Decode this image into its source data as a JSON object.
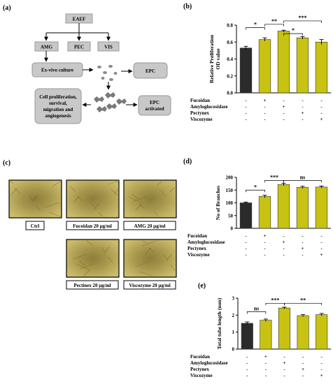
{
  "panels": {
    "a": {
      "letter": "(a)",
      "nodes": {
        "eaef": "EAEF",
        "amg": "AMG",
        "pec": "PEC",
        "vis": "VIS",
        "exvivo": "Ex-vivo culture",
        "epc": "EPC",
        "epc_act_1": "EPC",
        "epc_act_2": "activated",
        "outcome_1": "Cell proliferation,",
        "outcome_2": "survival,",
        "outcome_3": "migration and",
        "outcome_4": "angiogenesis"
      }
    },
    "b": {
      "letter": "(b)"
    },
    "c": {
      "letter": "(c)",
      "captions": [
        "Ctrl",
        "Fucoidan 20 µg/ml",
        "AMG 20 µg/ml",
        "Pectinex 20 µg/ml",
        "Viscozyme 20 µg/ml"
      ]
    },
    "d": {
      "letter": "(d)"
    },
    "e": {
      "letter": "(e)"
    }
  },
  "treatment_rows": [
    "Fucoidan",
    "Amyloglucosidase",
    "Pectynex",
    "Viscozyme"
  ],
  "treatment_matrix": [
    [
      "-",
      "+",
      "-",
      "-",
      "-"
    ],
    [
      "-",
      "-",
      "+",
      "-",
      "-"
    ],
    [
      "-",
      "-",
      "-",
      "+",
      "-"
    ],
    [
      "-",
      "-",
      "-",
      "-",
      "+"
    ]
  ],
  "colors": {
    "control_bar": "#2b2b2b",
    "treated_bar": "#c8c213",
    "micrograph": "#b4a457",
    "box_fill": "#c8c8c8"
  },
  "chart_data": [
    {
      "panel": "b",
      "type": "bar",
      "categories": [
        "Ctrl",
        "Fucoidan",
        "Amyloglucosidase",
        "Pectynex",
        "Viscozyme"
      ],
      "values": [
        0.53,
        0.63,
        0.73,
        0.65,
        0.6
      ],
      "errors": [
        0.02,
        0.02,
        0.01,
        0.015,
        0.03
      ],
      "ylabel_lines": [
        "Relative Proliferation",
        "OD value"
      ],
      "ylim": [
        0,
        0.8
      ],
      "yticks": [
        "0.0",
        "0.2",
        "0.4",
        "0.6",
        "0.8"
      ],
      "annotations": [
        {
          "from": 0,
          "to": 1,
          "text": "*",
          "level": 0.77
        },
        {
          "from": 1,
          "to": 2,
          "text": "**",
          "level": 0.81
        },
        {
          "from": 2,
          "to": 3,
          "text": "*",
          "level": 0.7
        },
        {
          "from": 2,
          "to": 4,
          "text": "***",
          "level": 0.85
        }
      ]
    },
    {
      "panel": "d",
      "type": "bar",
      "categories": [
        "Ctrl",
        "Fucoidan",
        "Amyloglucosidase",
        "Pectynex",
        "Viscozyme"
      ],
      "values": [
        100,
        125,
        172,
        161,
        162
      ],
      "errors": [
        3,
        5,
        5,
        4,
        4
      ],
      "ylabel_lines": [
        "No of Branches"
      ],
      "ylim": [
        0,
        200
      ],
      "yticks": [
        "0",
        "50",
        "100",
        "150",
        "200"
      ],
      "annotations": [
        {
          "from": 0,
          "to": 1,
          "text": "*",
          "level": 150
        },
        {
          "from": 1,
          "to": 2,
          "text": "***",
          "level": 188
        },
        {
          "from": 2,
          "to": 4,
          "text": "ns",
          "level": 188
        }
      ]
    },
    {
      "panel": "e",
      "type": "bar",
      "categories": [
        "Ctrl",
        "Fucoidan",
        "Amyloglucosidase",
        "Pectynex",
        "Viscozyme"
      ],
      "values": [
        1.52,
        1.7,
        2.42,
        1.97,
        2.03
      ],
      "errors": [
        0.08,
        0.07,
        0.05,
        0.06,
        0.07
      ],
      "ylabel_lines": [
        "Total tube length (mm)"
      ],
      "ylim": [
        0,
        3
      ],
      "yticks": [
        "0",
        "1",
        "2",
        "3"
      ],
      "annotations": [
        {
          "from": 0,
          "to": 1,
          "text": "ns",
          "level": 2.2
        },
        {
          "from": 1,
          "to": 2,
          "text": "***",
          "level": 2.7
        },
        {
          "from": 2,
          "to": 4,
          "text": "**",
          "level": 2.7
        }
      ]
    }
  ]
}
